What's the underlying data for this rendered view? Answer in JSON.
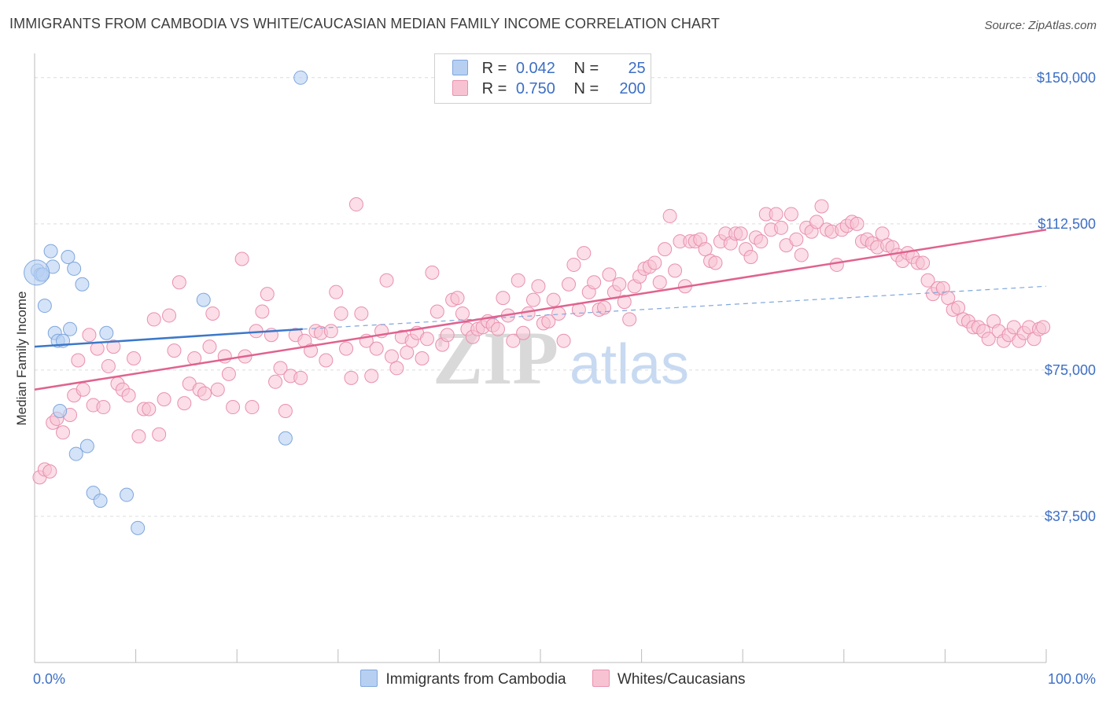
{
  "title": "IMMIGRANTS FROM CAMBODIA VS WHITE/CAUCASIAN MEDIAN FAMILY INCOME CORRELATION CHART",
  "source": "Source: ZipAtlas.com",
  "watermark": {
    "zip": "ZIP",
    "atlas": "atlas"
  },
  "colors": {
    "blue_fill": "#b7d0f2",
    "blue_stroke": "#7fa6dd",
    "blue_line": "#3b78c9",
    "pink_fill": "#f7c3d3",
    "pink_stroke": "#e990ae",
    "pink_line": "#e0628f",
    "axis_text": "#3d6fc4",
    "grid": "#dcdcdc"
  },
  "legend": {
    "rows": [
      {
        "r_label": "R =",
        "r_value": "0.042",
        "n_label": "N =",
        "n_value": "25"
      },
      {
        "r_label": "R =",
        "r_value": "0.750",
        "n_label": "N =",
        "n_value": "200"
      }
    ]
  },
  "bottom_legend": [
    "Immigrants from Cambodia",
    "Whites/Caucasians"
  ],
  "chart_data": {
    "type": "scatter",
    "xlabel": "",
    "ylabel": "Median Family Income",
    "xlim": [
      0,
      100
    ],
    "ylim": [
      0,
      155000
    ],
    "x_tick_labels": [
      "0.0%",
      "100.0%"
    ],
    "y_ticks": [
      37500,
      75000,
      112500,
      150000
    ],
    "y_tick_labels": [
      "$37,500",
      "$75,000",
      "$112,500",
      "$150,000"
    ],
    "grid": true,
    "series": [
      {
        "name": "Immigrants from Cambodia",
        "trend": {
          "x0": 0,
          "y0": 81000,
          "x1": 26.5,
          "y1": 85500,
          "dashed_to_x": 100,
          "dashed_to_y": 96500
        },
        "points": [
          [
            0.3,
            100500
          ],
          [
            0.6,
            99500
          ],
          [
            0.8,
            99500
          ],
          [
            1.0,
            91500
          ],
          [
            1.6,
            105500
          ],
          [
            1.8,
            101500
          ],
          [
            2.0,
            84500
          ],
          [
            2.3,
            82500
          ],
          [
            2.5,
            64500
          ],
          [
            2.8,
            82500
          ],
          [
            3.3,
            104000
          ],
          [
            3.5,
            85500
          ],
          [
            3.9,
            101000
          ],
          [
            4.1,
            53500
          ],
          [
            4.7,
            97000
          ],
          [
            5.2,
            55500
          ],
          [
            5.8,
            43500
          ],
          [
            6.5,
            41500
          ],
          [
            7.1,
            84500
          ],
          [
            9.1,
            43000
          ],
          [
            10.2,
            34500
          ],
          [
            16.7,
            93000
          ],
          [
            24.8,
            57500
          ],
          [
            26.3,
            150000
          ],
          [
            0.2,
            100000
          ]
        ]
      },
      {
        "name": "Whites/Caucasians",
        "trend": {
          "x0": 0,
          "y0": 70000,
          "x1": 100,
          "y1": 111000
        },
        "points": [
          [
            0.5,
            47500
          ],
          [
            1.0,
            49500
          ],
          [
            1.5,
            49000
          ],
          [
            1.8,
            61500
          ],
          [
            2.2,
            62500
          ],
          [
            2.8,
            59000
          ],
          [
            3.5,
            63500
          ],
          [
            3.9,
            68500
          ],
          [
            4.3,
            77500
          ],
          [
            4.8,
            70000
          ],
          [
            5.4,
            84000
          ],
          [
            5.8,
            66000
          ],
          [
            6.2,
            80500
          ],
          [
            6.8,
            65500
          ],
          [
            7.3,
            76000
          ],
          [
            7.8,
            81000
          ],
          [
            8.2,
            71500
          ],
          [
            8.7,
            70000
          ],
          [
            9.3,
            68500
          ],
          [
            9.8,
            78000
          ],
          [
            10.3,
            58000
          ],
          [
            10.8,
            65000
          ],
          [
            11.3,
            65000
          ],
          [
            11.8,
            88000
          ],
          [
            12.3,
            58500
          ],
          [
            12.8,
            67500
          ],
          [
            13.3,
            89000
          ],
          [
            13.8,
            80000
          ],
          [
            14.3,
            97500
          ],
          [
            14.8,
            66500
          ],
          [
            15.3,
            71500
          ],
          [
            15.8,
            78000
          ],
          [
            16.3,
            70000
          ],
          [
            16.8,
            69000
          ],
          [
            17.3,
            81000
          ],
          [
            17.6,
            89500
          ],
          [
            18.1,
            70000
          ],
          [
            18.8,
            78500
          ],
          [
            19.2,
            74000
          ],
          [
            19.6,
            65500
          ],
          [
            20.5,
            103500
          ],
          [
            20.8,
            78500
          ],
          [
            21.5,
            65500
          ],
          [
            21.9,
            85000
          ],
          [
            22.5,
            90000
          ],
          [
            23.0,
            94500
          ],
          [
            23.4,
            84000
          ],
          [
            23.8,
            72000
          ],
          [
            24.3,
            75500
          ],
          [
            24.8,
            64500
          ],
          [
            25.3,
            73500
          ],
          [
            25.8,
            84000
          ],
          [
            26.3,
            73000
          ],
          [
            26.7,
            82500
          ],
          [
            27.3,
            80000
          ],
          [
            27.8,
            85000
          ],
          [
            28.3,
            84500
          ],
          [
            28.8,
            77500
          ],
          [
            29.3,
            85000
          ],
          [
            29.8,
            95000
          ],
          [
            30.3,
            89500
          ],
          [
            30.8,
            80500
          ],
          [
            31.3,
            73000
          ],
          [
            31.8,
            117500
          ],
          [
            32.3,
            89500
          ],
          [
            32.8,
            82500
          ],
          [
            33.3,
            73500
          ],
          [
            33.8,
            80500
          ],
          [
            34.3,
            85000
          ],
          [
            34.8,
            98000
          ],
          [
            35.3,
            78500
          ],
          [
            35.8,
            75500
          ],
          [
            36.3,
            83500
          ],
          [
            36.8,
            79500
          ],
          [
            37.3,
            82500
          ],
          [
            37.8,
            84500
          ],
          [
            38.3,
            78000
          ],
          [
            38.8,
            83000
          ],
          [
            39.3,
            100000
          ],
          [
            39.8,
            90000
          ],
          [
            40.3,
            81500
          ],
          [
            40.8,
            84000
          ],
          [
            41.3,
            93000
          ],
          [
            41.8,
            93500
          ],
          [
            42.3,
            89500
          ],
          [
            42.8,
            85500
          ],
          [
            43.3,
            83500
          ],
          [
            43.8,
            85500
          ],
          [
            44.3,
            86000
          ],
          [
            44.8,
            87500
          ],
          [
            45.3,
            86500
          ],
          [
            45.8,
            85500
          ],
          [
            46.3,
            93500
          ],
          [
            46.8,
            89000
          ],
          [
            47.3,
            82500
          ],
          [
            47.8,
            98000
          ],
          [
            48.3,
            84500
          ],
          [
            48.8,
            89500
          ],
          [
            49.3,
            93000
          ],
          [
            49.8,
            96500
          ],
          [
            50.3,
            87000
          ],
          [
            50.8,
            87500
          ],
          [
            51.3,
            93000
          ],
          [
            51.8,
            89500
          ],
          [
            52.3,
            82500
          ],
          [
            52.8,
            97000
          ],
          [
            53.3,
            102000
          ],
          [
            53.8,
            90500
          ],
          [
            54.3,
            105000
          ],
          [
            54.8,
            95000
          ],
          [
            55.3,
            97500
          ],
          [
            55.8,
            90500
          ],
          [
            56.3,
            91000
          ],
          [
            56.8,
            99500
          ],
          [
            57.3,
            95000
          ],
          [
            57.8,
            97000
          ],
          [
            58.3,
            92500
          ],
          [
            58.8,
            88000
          ],
          [
            59.3,
            96500
          ],
          [
            59.8,
            99000
          ],
          [
            60.3,
            101000
          ],
          [
            60.8,
            101500
          ],
          [
            61.3,
            102500
          ],
          [
            61.8,
            97500
          ],
          [
            62.3,
            106000
          ],
          [
            62.8,
            114500
          ],
          [
            63.3,
            100500
          ],
          [
            63.8,
            108000
          ],
          [
            64.3,
            96500
          ],
          [
            64.8,
            108000
          ],
          [
            65.3,
            108000
          ],
          [
            65.8,
            108500
          ],
          [
            66.3,
            106000
          ],
          [
            66.8,
            103000
          ],
          [
            67.3,
            102500
          ],
          [
            67.8,
            108000
          ],
          [
            68.3,
            110000
          ],
          [
            68.8,
            107500
          ],
          [
            69.3,
            110000
          ],
          [
            69.8,
            110000
          ],
          [
            70.3,
            106000
          ],
          [
            70.8,
            104000
          ],
          [
            71.3,
            109000
          ],
          [
            71.8,
            108000
          ],
          [
            72.3,
            115000
          ],
          [
            72.8,
            111000
          ],
          [
            73.3,
            115000
          ],
          [
            73.8,
            111500
          ],
          [
            74.3,
            107000
          ],
          [
            74.8,
            115000
          ],
          [
            75.3,
            108500
          ],
          [
            75.8,
            104500
          ],
          [
            76.3,
            111500
          ],
          [
            76.8,
            110500
          ],
          [
            77.3,
            113000
          ],
          [
            77.8,
            117000
          ],
          [
            78.3,
            111000
          ],
          [
            78.8,
            110500
          ],
          [
            79.3,
            102000
          ],
          [
            79.8,
            111000
          ],
          [
            80.3,
            112000
          ],
          [
            80.8,
            113000
          ],
          [
            81.3,
            112500
          ],
          [
            81.8,
            108000
          ],
          [
            82.3,
            108500
          ],
          [
            82.8,
            107500
          ],
          [
            83.3,
            106500
          ],
          [
            83.8,
            110000
          ],
          [
            84.3,
            107000
          ],
          [
            84.8,
            106500
          ],
          [
            85.3,
            104500
          ],
          [
            85.8,
            103000
          ],
          [
            86.3,
            105000
          ],
          [
            86.8,
            104000
          ],
          [
            87.3,
            102500
          ],
          [
            87.8,
            102500
          ],
          [
            88.3,
            98000
          ],
          [
            88.8,
            94500
          ],
          [
            89.3,
            96000
          ],
          [
            89.8,
            96000
          ],
          [
            90.3,
            93500
          ],
          [
            90.8,
            90500
          ],
          [
            91.3,
            91000
          ],
          [
            91.8,
            88000
          ],
          [
            92.3,
            87500
          ],
          [
            92.8,
            86000
          ],
          [
            93.3,
            86000
          ],
          [
            93.8,
            85000
          ],
          [
            94.3,
            83000
          ],
          [
            94.8,
            87500
          ],
          [
            95.3,
            85000
          ],
          [
            95.8,
            82500
          ],
          [
            96.3,
            84000
          ],
          [
            96.8,
            86000
          ],
          [
            97.3,
            82500
          ],
          [
            97.8,
            84500
          ],
          [
            98.3,
            86000
          ],
          [
            98.8,
            83000
          ],
          [
            99.3,
            85500
          ],
          [
            99.7,
            86000
          ]
        ]
      }
    ]
  }
}
